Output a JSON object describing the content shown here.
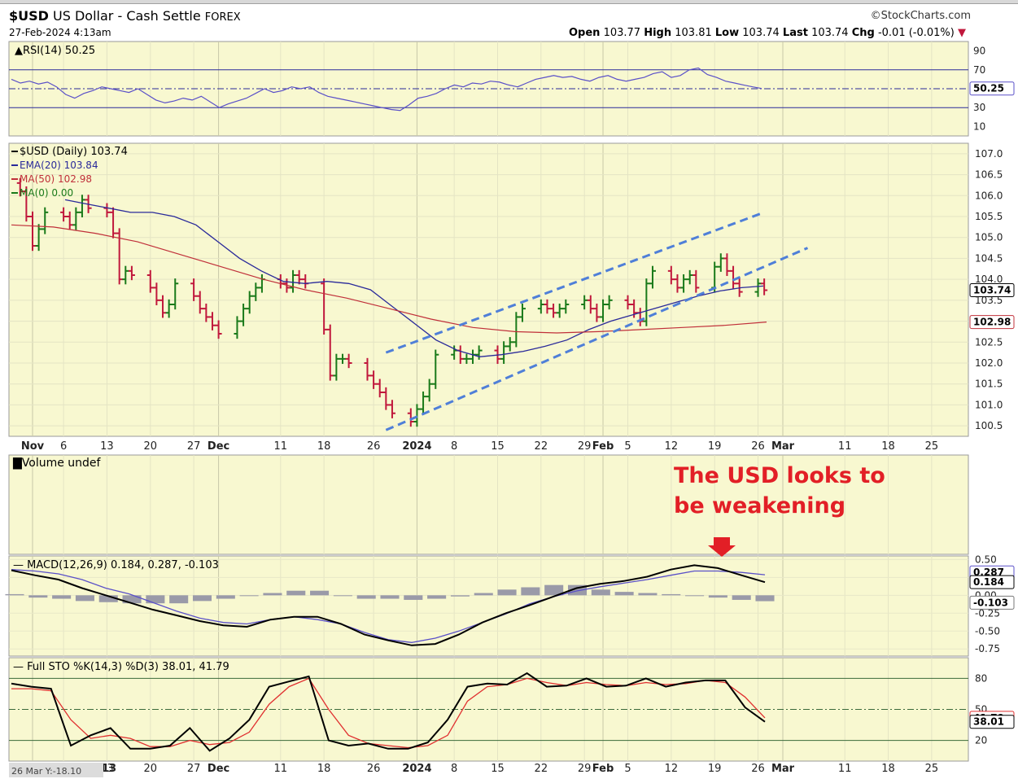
{
  "header": {
    "symbol": "$USD",
    "name": "US Dollar - Cash Settle",
    "exchange": "FOREX",
    "datetime": "27-Feb-2024 4:13am",
    "brand": "StockCharts.com",
    "open_label": "Open",
    "open": "103.77",
    "high_label": "High",
    "high": "103.81",
    "low_label": "Low",
    "low": "103.74",
    "last_label": "Last",
    "last": "103.74",
    "chg_label": "Chg",
    "chg": "-0.01 (-0.01%)"
  },
  "colors": {
    "panel_bg": "#f8f8d0",
    "up_bar": "#1a7a1a",
    "down_bar": "#c0183c",
    "ema": "#2a2a9a",
    "ma50": "#c0303a",
    "channel": "#4f7fd8",
    "annotation": "#e21f26",
    "rsi_line": "#5a50c8"
  },
  "x_axis": {
    "ticks": [
      {
        "label": "Nov",
        "date": "2023-11-01",
        "bold": true
      },
      {
        "label": "6",
        "date": "2023-11-06",
        "bold": false
      },
      {
        "label": "13",
        "date": "2023-11-13",
        "bold": false
      },
      {
        "label": "20",
        "date": "2023-11-20",
        "bold": false
      },
      {
        "label": "27",
        "date": "2023-11-27",
        "bold": false
      },
      {
        "label": "Dec",
        "date": "2023-12-01",
        "bold": true
      },
      {
        "label": "11",
        "date": "2023-12-11",
        "bold": false
      },
      {
        "label": "18",
        "date": "2023-12-18",
        "bold": false
      },
      {
        "label": "26",
        "date": "2023-12-26",
        "bold": false
      },
      {
        "label": "2024",
        "date": "2024-01-02",
        "bold": true
      },
      {
        "label": "8",
        "date": "2024-01-08",
        "bold": false
      },
      {
        "label": "15",
        "date": "2024-01-15",
        "bold": false
      },
      {
        "label": "22",
        "date": "2024-01-22",
        "bold": false
      },
      {
        "label": "29",
        "date": "2024-01-29",
        "bold": false
      },
      {
        "label": "Feb",
        "date": "2024-02-01",
        "bold": true
      },
      {
        "label": "5",
        "date": "2024-02-05",
        "bold": false
      },
      {
        "label": "12",
        "date": "2024-02-12",
        "bold": false
      },
      {
        "label": "19",
        "date": "2024-02-19",
        "bold": false
      },
      {
        "label": "26",
        "date": "2024-02-26",
        "bold": false
      },
      {
        "label": "Mar",
        "date": "2024-03-01",
        "bold": true
      },
      {
        "label": "11",
        "date": "2024-03-11",
        "bold": false
      },
      {
        "label": "18",
        "date": "2024-03-18",
        "bold": false
      },
      {
        "label": "25",
        "date": "2024-03-25",
        "bold": false
      }
    ],
    "bottom_first_label": "13",
    "corner_note": "26 Mar Y:-18.10"
  },
  "chart_data": [
    {
      "type": "line",
      "title": "RSI(14) 50.25",
      "ylim": [
        0,
        100
      ],
      "ticks": [
        90,
        70,
        30,
        10
      ],
      "reference_lines": [
        70,
        50,
        30
      ],
      "last_value_label": "50.25",
      "series": [
        {
          "name": "RSI(14)",
          "values": [
            60,
            56,
            58,
            55,
            57,
            52,
            44,
            40,
            45,
            48,
            52,
            50,
            48,
            46,
            50,
            44,
            38,
            35,
            37,
            40,
            38,
            42,
            36,
            30,
            34,
            37,
            40,
            45,
            50,
            46,
            48,
            52,
            50,
            52,
            46,
            42,
            40,
            38,
            36,
            34,
            32,
            30,
            28,
            27,
            33,
            40,
            42,
            45,
            50,
            54,
            52,
            56,
            55,
            58,
            57,
            54,
            52,
            56,
            60,
            62,
            64,
            62,
            63,
            60,
            58,
            62,
            64,
            60,
            58,
            60,
            62,
            66,
            68,
            62,
            64,
            70,
            72,
            65,
            62,
            58,
            56,
            54,
            52,
            50.25
          ]
        }
      ]
    },
    {
      "type": "bar",
      "title": "$USD (Daily) 103.74",
      "ylim": [
        100.25,
        107.25
      ],
      "ticks": [
        107.0,
        106.5,
        106.0,
        105.5,
        105.0,
        104.5,
        104.0,
        103.5,
        103.0,
        102.5,
        102.0,
        101.5,
        101.0,
        100.5
      ],
      "last_price_label": "103.74",
      "ma50_label": "102.98",
      "x_start": "2023-10-30",
      "legend": [
        {
          "label": "$USD (Daily) 103.74"
        },
        {
          "label": "EMA(20) 103.84"
        },
        {
          "label": "MA(50) 102.98"
        },
        {
          "label": "MA(0) 0.00"
        }
      ],
      "ohlc_close": [
        106.1,
        105.5,
        104.8,
        105.2,
        105.6,
        105.5,
        105.3,
        105.6,
        105.9,
        105.7,
        105.6,
        105.1,
        104.0,
        104.2,
        104.1,
        103.8,
        103.5,
        103.2,
        103.4,
        103.9,
        103.6,
        103.3,
        103.1,
        102.9,
        102.7,
        103.0,
        103.3,
        103.6,
        103.8,
        104.0,
        103.9,
        103.8,
        104.1,
        104.0,
        103.9,
        102.8,
        101.7,
        102.1,
        102.1,
        102.0,
        101.7,
        101.5,
        101.3,
        101.0,
        100.8,
        100.6,
        100.9,
        101.2,
        101.5,
        102.2,
        102.3,
        102.1,
        102.1,
        102.2,
        102.3,
        102.1,
        102.4,
        102.5,
        103.1,
        103.3,
        103.4,
        103.3,
        103.2,
        103.3,
        103.4,
        103.5,
        103.3,
        103.1,
        103.4,
        103.5,
        103.4,
        103.2,
        103.0,
        103.9,
        104.2,
        104.0,
        103.8,
        104.0,
        104.1,
        103.8,
        104.3,
        104.5,
        104.2,
        103.9,
        103.7,
        103.9,
        103.74
      ],
      "ema20": [
        105.9,
        105.8,
        105.7,
        105.6,
        105.6,
        105.5,
        105.3,
        104.9,
        104.5,
        104.2,
        103.95,
        103.9,
        103.95,
        103.9,
        103.75,
        103.35,
        102.95,
        102.55,
        102.3,
        102.15,
        102.2,
        102.28,
        102.4,
        102.55,
        102.8,
        103.0,
        103.15,
        103.3,
        103.45,
        103.6,
        103.72,
        103.8,
        103.84
      ],
      "ma50": [
        105.3,
        105.25,
        105.1,
        104.9,
        104.6,
        104.3,
        104.0,
        103.75,
        103.55,
        103.3,
        103.05,
        102.85,
        102.75,
        102.72,
        102.75,
        102.8,
        102.85,
        102.9,
        102.98
      ],
      "channel_upper": {
        "from": [
          "2023-12-28",
          102.25
        ],
        "to": [
          "2024-02-27",
          105.6
        ]
      },
      "channel_lower": {
        "from": [
          "2023-12-28",
          100.4
        ],
        "to": [
          "2024-03-05",
          104.75
        ]
      }
    },
    {
      "type": "bar",
      "title": "Volume undef",
      "values": []
    },
    {
      "type": "line",
      "title": "MACD(12,26,9) 0.184, 0.287, -0.103",
      "ylim": [
        -0.85,
        0.55
      ],
      "ticks": [
        0.5,
        0.25,
        0.0,
        -0.25,
        -0.5,
        -0.75
      ],
      "labels": {
        "macd": "0.184",
        "signal": "0.287",
        "hist": "-0.103"
      },
      "series": [
        {
          "name": "MACD(12,26,9)",
          "values": [
            0.35,
            0.28,
            0.22,
            0.1,
            0.0,
            -0.1,
            -0.2,
            -0.28,
            -0.36,
            -0.42,
            -0.44,
            -0.34,
            -0.3,
            -0.3,
            -0.4,
            -0.55,
            -0.63,
            -0.7,
            -0.68,
            -0.55,
            -0.38,
            -0.25,
            -0.14,
            -0.02,
            0.1,
            0.16,
            0.2,
            0.26,
            0.36,
            0.42,
            0.38,
            0.28,
            0.184
          ]
        },
        {
          "name": "Signal",
          "values": [
            0.36,
            0.34,
            0.3,
            0.22,
            0.1,
            0.02,
            -0.1,
            -0.22,
            -0.32,
            -0.38,
            -0.4,
            -0.34,
            -0.3,
            -0.34,
            -0.4,
            -0.52,
            -0.62,
            -0.66,
            -0.6,
            -0.5,
            -0.38,
            -0.26,
            -0.12,
            -0.02,
            0.06,
            0.12,
            0.17,
            0.22,
            0.28,
            0.34,
            0.34,
            0.32,
            0.287
          ]
        },
        {
          "name": "Histogram",
          "values": [
            0.02,
            -0.04,
            -0.06,
            -0.1,
            -0.12,
            -0.14,
            -0.14,
            -0.14,
            -0.1,
            -0.06,
            0.0,
            0.04,
            0.08,
            0.08,
            0.0,
            -0.06,
            -0.06,
            -0.08,
            -0.06,
            -0.02,
            0.04,
            0.1,
            0.14,
            0.18,
            0.18,
            0.1,
            0.06,
            0.04,
            0.02,
            0.0,
            -0.04,
            -0.08,
            -0.103
          ]
        }
      ]
    },
    {
      "type": "line",
      "title": "Full STO %K(14,3) %D(3) 38.01, 41.79",
      "ylim": [
        0,
        100
      ],
      "ticks": [
        80,
        50,
        20
      ],
      "reference_lines": [
        80,
        50,
        20
      ],
      "labels": {
        "k": "38.01",
        "d": "41.79"
      },
      "series": [
        {
          "name": "%K",
          "values": [
            75,
            72,
            70,
            15,
            25,
            32,
            12,
            12,
            15,
            32,
            10,
            22,
            40,
            72,
            77,
            82,
            20,
            15,
            17,
            12,
            12,
            18,
            40,
            72,
            75,
            74,
            85,
            72,
            73,
            80,
            72,
            73,
            80,
            72,
            76,
            78,
            78,
            52,
            38.01
          ]
        },
        {
          "name": "%D",
          "values": [
            70,
            70,
            68,
            40,
            22,
            25,
            22,
            14,
            14,
            20,
            16,
            18,
            28,
            55,
            72,
            80,
            50,
            25,
            17,
            15,
            13,
            15,
            25,
            58,
            72,
            74,
            80,
            76,
            73,
            76,
            74,
            73,
            76,
            74,
            75,
            78,
            76,
            62,
            41.79
          ]
        }
      ]
    }
  ],
  "annotation": {
    "line1": "The USD looks to",
    "line2": "be weakening"
  }
}
